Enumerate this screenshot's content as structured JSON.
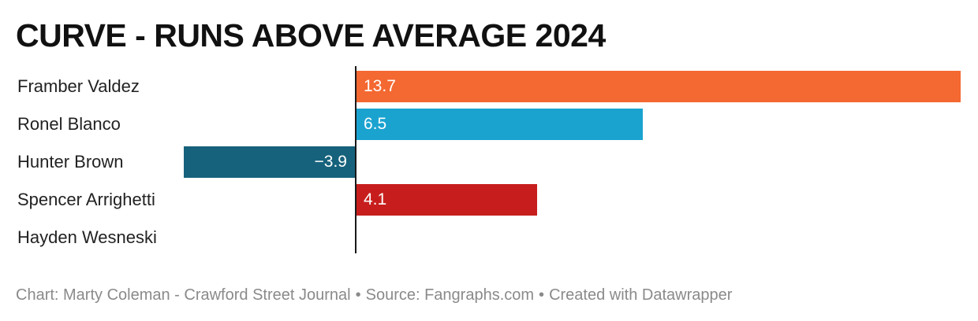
{
  "title": "CURVE - RUNS ABOVE AVERAGE 2024",
  "footer": {
    "chart_credit": "Chart: Marty Coleman - Crawford Street Journal",
    "source": "Source: Fangraphs.com",
    "tool": "Created with Datawrapper",
    "separator": "•"
  },
  "chart_data": {
    "type": "bar",
    "orientation": "horizontal",
    "title": "CURVE - RUNS ABOVE AVERAGE 2024",
    "categories": [
      "Framber Valdez",
      "Ronel Blanco",
      "Hunter Brown",
      "Spencer Arrighetti",
      "Hayden Wesneski"
    ],
    "values": [
      13.7,
      6.5,
      -3.9,
      4.1,
      null
    ],
    "value_labels": [
      "13.7",
      "6.5",
      "−3.9",
      "4.1",
      ""
    ],
    "colors": [
      "#f46831",
      "#1ba3d0",
      "#16627c",
      "#c71e1d",
      null
    ],
    "xlim": [
      -3.9,
      13.7
    ],
    "grid": false,
    "legend": "none"
  }
}
